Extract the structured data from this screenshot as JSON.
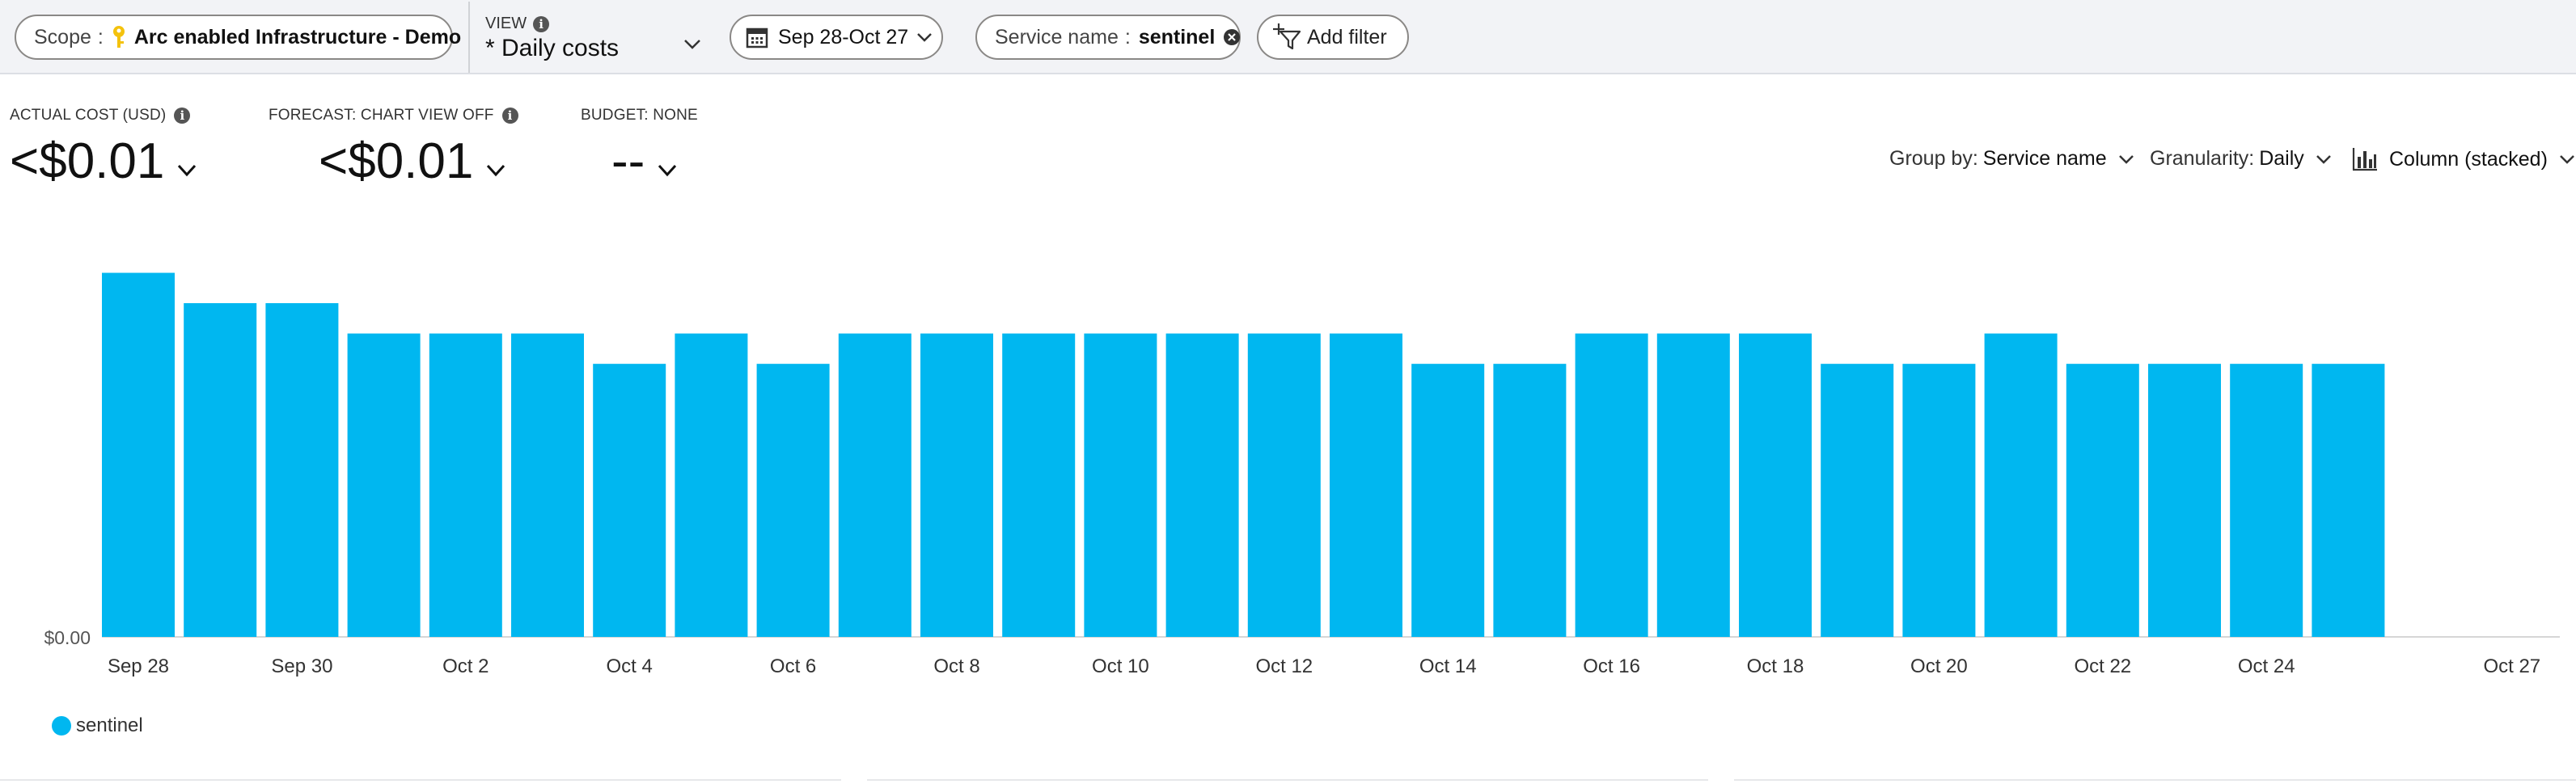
{
  "toolbar": {
    "scope_label": "Scope",
    "scope_value": "Arc enabled Infrastructure - Demo",
    "view_label": "VIEW",
    "view_value": "* Daily costs",
    "date_range": "Sep 28-Oct 27",
    "filter_label": "Service name",
    "filter_value": "sentinel",
    "add_filter": "Add filter"
  },
  "kpis": [
    {
      "label": "ACTUAL COST (USD)",
      "value": "<$0.01"
    },
    {
      "label": "FORECAST: CHART VIEW OFF",
      "value": "<$0.01"
    },
    {
      "label": "BUDGET: NONE",
      "value": "--"
    }
  ],
  "controls": {
    "group_by_label": "Group by:",
    "group_by_value": "Service name",
    "granularity_label": "Granularity:",
    "granularity_value": "Daily",
    "chart_type": "Column (stacked)"
  },
  "icons": {
    "scope": "key-icon",
    "view_info": "info-icon",
    "date": "calendar-icon",
    "filter_clear": "clear-icon",
    "add_filter": "add-filter-icon",
    "chart_type": "column-chart-icon"
  },
  "colors": {
    "accent": "#00b7f0"
  },
  "chart_data": {
    "type": "bar",
    "title": "",
    "xlabel": "",
    "ylabel": "",
    "y_tick_labels": [
      "$0.00"
    ],
    "categories": [
      "Sep 28",
      "Sep 29",
      "Sep 30",
      "Oct 1",
      "Oct 2",
      "Oct 3",
      "Oct 4",
      "Oct 5",
      "Oct 6",
      "Oct 7",
      "Oct 8",
      "Oct 9",
      "Oct 10",
      "Oct 11",
      "Oct 12",
      "Oct 13",
      "Oct 14",
      "Oct 15",
      "Oct 16",
      "Oct 17",
      "Oct 18",
      "Oct 19",
      "Oct 20",
      "Oct 21",
      "Oct 22",
      "Oct 23",
      "Oct 24",
      "Oct 25",
      "Oct 26",
      "Oct 27"
    ],
    "x_tick_labels": [
      "Sep 28",
      "Sep 30",
      "Oct 2",
      "Oct 4",
      "Oct 6",
      "Oct 8",
      "Oct 10",
      "Oct 12",
      "Oct 14",
      "Oct 16",
      "Oct 18",
      "Oct 20",
      "Oct 22",
      "Oct 24",
      "Oct 27"
    ],
    "series": [
      {
        "name": "sentinel",
        "color": "#00b7f0",
        "values": [
          12,
          11,
          11,
          10,
          10,
          10,
          9,
          10,
          9,
          10,
          10,
          10,
          10,
          10,
          10,
          10,
          9,
          9,
          10,
          10,
          10,
          9,
          9,
          10,
          9,
          9,
          9,
          9,
          null,
          null
        ]
      }
    ],
    "ylim": [
      0,
      13
    ],
    "grid": false,
    "legend": "bottom-left"
  }
}
